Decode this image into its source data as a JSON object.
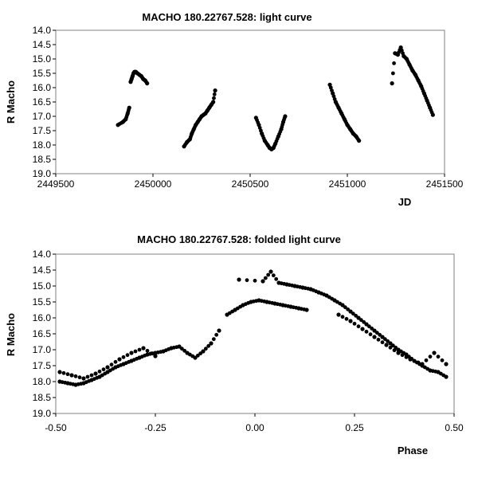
{
  "chart_data": [
    {
      "type": "scatter",
      "title": "MACHO 180.22767.528: light curve",
      "xlabel": "JD",
      "ylabel": "R Macho",
      "xlim": [
        2449500,
        2451500
      ],
      "ylim": [
        14.0,
        19.0
      ],
      "y_inverted": true,
      "grid": false,
      "legend": "none",
      "xticks": [
        "2449500",
        "2450000",
        "2450500",
        "2451000",
        "2451500"
      ],
      "yticks": [
        "14.0",
        "14.5",
        "15.0",
        "15.5",
        "16.0",
        "16.5",
        "17.0",
        "17.5",
        "18.0",
        "18.5",
        "19.0"
      ],
      "series": [
        {
          "marker_color": "#000000",
          "segments": [
            {
              "x": [
                2449820,
                2449845,
                2449860,
                2449870,
                2449878
              ],
              "y": [
                17.3,
                17.2,
                17.1,
                16.9,
                16.7
              ]
            },
            {
              "x": [
                2449885,
                2449890,
                2449895,
                2449900,
                2449905,
                2449912,
                2449920,
                2449930,
                2449940,
                2449950,
                2449960,
                2449970
              ],
              "y": [
                15.8,
                15.7,
                15.6,
                15.5,
                15.45,
                15.45,
                15.5,
                15.55,
                15.6,
                15.7,
                15.75,
                15.85
              ]
            },
            {
              "x": [
                2450160,
                2450175,
                2450190,
                2450200,
                2450210,
                2450220,
                2450230,
                2450240,
                2450250,
                2450260,
                2450270,
                2450280,
                2450290,
                2450300,
                2450310,
                2450320
              ],
              "y": [
                18.05,
                17.9,
                17.8,
                17.6,
                17.45,
                17.3,
                17.2,
                17.1,
                17.0,
                16.95,
                16.9,
                16.8,
                16.7,
                16.6,
                16.5,
                16.1
              ]
            },
            {
              "x": [
                2450530,
                2450545,
                2450560,
                2450575,
                2450590,
                2450600,
                2450610,
                2450620,
                2450630,
                2450645,
                2450660,
                2450670,
                2450680
              ],
              "y": [
                17.05,
                17.3,
                17.6,
                17.85,
                18.0,
                18.1,
                18.15,
                18.1,
                17.95,
                17.7,
                17.45,
                17.2,
                17.0
              ]
            },
            {
              "x": [
                2450910,
                2450925,
                2450940,
                2450955,
                2450970,
                2450985,
                2451000,
                2451015,
                2451030,
                2451045,
                2451060
              ],
              "y": [
                15.9,
                16.2,
                16.5,
                16.7,
                16.9,
                17.1,
                17.3,
                17.45,
                17.6,
                17.7,
                17.85
              ]
            },
            {
              "x": [
                2451230,
                2451245,
                2451260,
                2451275,
                2451290,
                2451305,
                2451320,
                2451335,
                2451350,
                2451365,
                2451380,
                2451395,
                2451410,
                2451425,
                2451440
              ],
              "y": [
                15.85,
                14.8,
                14.85,
                14.6,
                14.9,
                15.0,
                15.2,
                15.4,
                15.55,
                15.75,
                15.95,
                16.2,
                16.45,
                16.7,
                16.95
              ]
            }
          ]
        }
      ]
    },
    {
      "type": "scatter",
      "title": "MACHO 180.22767.528: folded light curve",
      "xlabel": "Phase",
      "ylabel": "R Macho",
      "xlim": [
        -0.5,
        0.5
      ],
      "ylim": [
        14.0,
        19.0
      ],
      "y_inverted": true,
      "grid": false,
      "legend": "none",
      "xticks": [
        "-0.50",
        "-0.25",
        "0.00",
        "0.25",
        "0.50"
      ],
      "yticks": [
        "14.0",
        "14.5",
        "15.0",
        "15.5",
        "16.0",
        "16.5",
        "17.0",
        "17.5",
        "18.0",
        "18.5",
        "19.0"
      ],
      "series": [
        {
          "marker_color": "#000000",
          "segments": [
            {
              "x": [
                -0.49,
                -0.47,
                -0.45,
                -0.43,
                -0.41,
                -0.39,
                -0.37,
                -0.35,
                -0.33,
                -0.31,
                -0.29,
                -0.27,
                -0.25,
                -0.23,
                -0.21,
                -0.19,
                -0.17,
                -0.15,
                -0.13,
                -0.11,
                -0.09
              ],
              "y": [
                18.0,
                18.05,
                18.1,
                18.05,
                17.95,
                17.85,
                17.7,
                17.55,
                17.45,
                17.35,
                17.25,
                17.15,
                17.1,
                17.05,
                16.95,
                16.9,
                17.1,
                17.25,
                17.05,
                16.8,
                16.4
              ]
            },
            {
              "x": [
                -0.49,
                -0.46,
                -0.43,
                -0.4,
                -0.37,
                -0.34,
                -0.31,
                -0.28,
                -0.25
              ],
              "y": [
                17.7,
                17.8,
                17.9,
                17.75,
                17.55,
                17.3,
                17.1,
                16.95,
                17.2
              ]
            },
            {
              "x": [
                -0.07,
                -0.05,
                -0.03,
                -0.01,
                0.01,
                0.03,
                0.05,
                0.07,
                0.09,
                0.11,
                0.13
              ],
              "y": [
                15.9,
                15.75,
                15.6,
                15.5,
                15.45,
                15.5,
                15.55,
                15.6,
                15.65,
                15.7,
                15.75
              ]
            },
            {
              "x": [
                -0.04,
                0.02,
                0.04,
                0.06,
                0.08,
                0.1,
                0.12,
                0.14,
                0.16,
                0.18,
                0.2,
                0.22,
                0.24,
                0.26,
                0.28,
                0.3,
                0.32,
                0.34,
                0.36,
                0.38,
                0.4,
                0.42,
                0.44,
                0.46,
                0.48
              ],
              "y": [
                14.8,
                14.85,
                14.55,
                14.9,
                14.95,
                15.0,
                15.05,
                15.1,
                15.2,
                15.3,
                15.45,
                15.6,
                15.8,
                16.0,
                16.2,
                16.4,
                16.6,
                16.8,
                17.0,
                17.15,
                17.35,
                17.5,
                17.65,
                17.7,
                17.85
              ]
            },
            {
              "x": [
                0.21,
                0.24,
                0.27,
                0.3,
                0.33,
                0.36,
                0.39,
                0.42,
                0.45,
                0.48
              ],
              "y": [
                15.9,
                16.1,
                16.35,
                16.6,
                16.85,
                17.1,
                17.3,
                17.45,
                17.1,
                17.45
              ]
            }
          ]
        }
      ]
    }
  ]
}
